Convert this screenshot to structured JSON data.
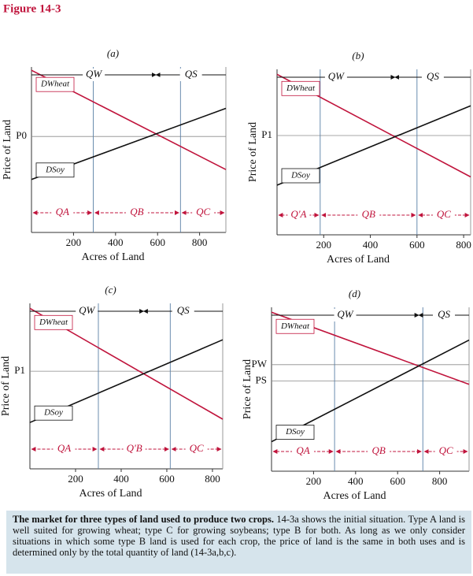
{
  "figure_title": "Figure 14-3",
  "caption_title": "The market for three types of land used to produce two crops.",
  "caption_text": "14-3a shows the initial situation. Type A land is well suited for growing wheat; type C for growing soybeans; type B for both. As long as we only consider situations in which some type B land is used for each crop, the price of land is the same in both uses and is determined only by the total quantity of land (14-3a,b,c).",
  "chart_data": [
    {
      "type": "line",
      "panel_label": "(a)",
      "xlabel": "Acres of Land",
      "ylabel": "Price of Land",
      "xlim": [
        0,
        925
      ],
      "ylim": [
        0,
        100
      ],
      "xticks": [
        200,
        400,
        600,
        800
      ],
      "yticks": [
        {
          "value": 58,
          "label": "P0"
        }
      ],
      "x": [
        0,
        925
      ],
      "series": [
        {
          "name": "DWheat",
          "color": "#c0143c",
          "values": [
            98,
            38
          ]
        },
        {
          "name": "DSoy",
          "color": "#111111",
          "values": [
            32,
            75
          ]
        }
      ],
      "region_bounds": [
        294,
        709
      ],
      "regions": [
        "QA",
        "QB",
        "QC"
      ],
      "quantity_labels": [
        "QW",
        "QS"
      ]
    },
    {
      "type": "line",
      "panel_label": "(b)",
      "xlabel": "Acres of Land",
      "ylabel": "Price of Land",
      "xlim": [
        0,
        830
      ],
      "ylim": [
        0,
        100
      ],
      "xticks": [
        200,
        400,
        600,
        {
          "value": 800,
          "label": "800"
        }
      ],
      "yticks": [
        {
          "value": 60,
          "label": "P1"
        }
      ],
      "x": [
        0,
        830
      ],
      "series": [
        {
          "name": "DWheat",
          "color": "#c0143c",
          "values": [
            97,
            35
          ]
        },
        {
          "name": "DSoy",
          "color": "#111111",
          "values": [
            30,
            78
          ]
        }
      ],
      "region_bounds": [
        185,
        600
      ],
      "regions": [
        "Q'A",
        "QB",
        "QC"
      ],
      "quantity_labels": [
        "QW",
        "QS"
      ]
    },
    {
      "type": "line",
      "panel_label": "(c)",
      "xlabel": "Acres of Land",
      "ylabel": "Price of Land",
      "xlim": [
        0,
        845
      ],
      "ylim": [
        0,
        100
      ],
      "xticks": [
        200,
        400,
        600,
        800
      ],
      "yticks": [
        {
          "value": 59,
          "label": "P1"
        }
      ],
      "x": [
        0,
        845
      ],
      "series": [
        {
          "name": "DWheat",
          "color": "#c0143c",
          "values": [
            97,
            30
          ]
        },
        {
          "name": "DSoy",
          "color": "#111111",
          "values": [
            28,
            78
          ]
        }
      ],
      "region_bounds": [
        300,
        615
      ],
      "regions": [
        "QA",
        "Q'B",
        "QC"
      ],
      "quantity_labels": [
        "QW",
        "QS"
      ]
    },
    {
      "type": "line",
      "panel_label": "(d)",
      "xlabel": "Acres of Land",
      "ylabel": "Price of Land",
      "xlim": [
        0,
        940
      ],
      "ylim": [
        0,
        100
      ],
      "xticks": [
        200,
        400,
        600,
        800
      ],
      "yticks": [
        {
          "value": 65,
          "label": "PW"
        },
        {
          "value": 55,
          "label": "PS"
        }
      ],
      "x": [
        0,
        940
      ],
      "series": [
        {
          "name": "DWheat",
          "color": "#c0143c",
          "values": [
            97,
            53
          ]
        },
        {
          "name": "DSoy",
          "color": "#111111",
          "values": [
            18,
            80
          ]
        }
      ],
      "region_bounds": [
        300,
        720
      ],
      "regions": [
        "QA",
        "QB",
        "QC"
      ],
      "quantity_labels": [
        "QW",
        "QS"
      ]
    }
  ]
}
